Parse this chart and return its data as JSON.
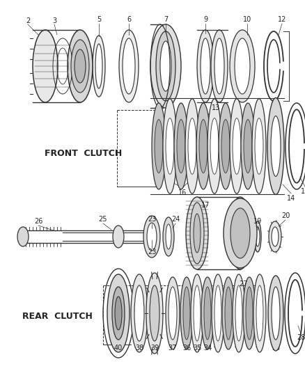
{
  "bg_color": "#ffffff",
  "line_color": "#333333",
  "label_color": "#222222",
  "front_clutch_label": "FRONT  CLUTCH",
  "rear_clutch_label": "REAR  CLUTCH",
  "figsize": [
    4.38,
    5.33
  ],
  "dpi": 100
}
